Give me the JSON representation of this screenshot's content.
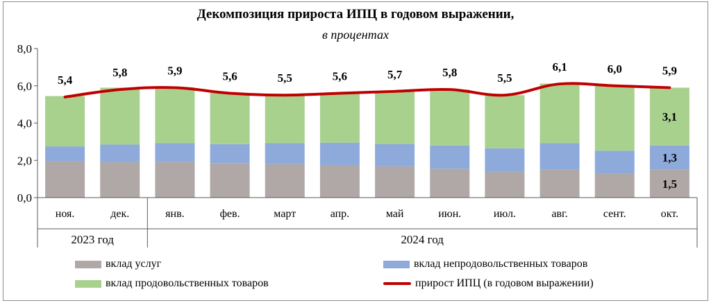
{
  "title": "Декомпозиция  прироста ИПЦ  в годовом выражении,",
  "subtitle": "в процентах",
  "chart_data": {
    "type": "bar",
    "stacked": true,
    "categories": [
      "ноя.",
      "дек.",
      "янв.",
      "фев.",
      "март",
      "апр.",
      "май",
      "июн.",
      "июл.",
      "авг.",
      "сент.",
      "окт."
    ],
    "year_groups": [
      {
        "label": "2023 год",
        "span": 2
      },
      {
        "label": "2024 год",
        "span": 10
      }
    ],
    "ylim": [
      0,
      8
    ],
    "yticks": [
      "0,0",
      "2,0",
      "4,0",
      "6,0",
      "8,0"
    ],
    "ytick_values": [
      0,
      2,
      4,
      6,
      8
    ],
    "series": [
      {
        "name": "вклад услуг",
        "color": "#afa8a6",
        "values": [
          1.95,
          1.9,
          1.92,
          1.85,
          1.8,
          1.75,
          1.68,
          1.55,
          1.38,
          1.5,
          1.3,
          1.5
        ]
      },
      {
        "name": "вклад непродовольственных товаров",
        "color": "#8eaadb",
        "values": [
          0.8,
          0.95,
          1.0,
          1.02,
          1.12,
          1.2,
          1.2,
          1.25,
          1.27,
          1.42,
          1.22,
          1.3
        ]
      },
      {
        "name": "вклад продовольственных товаров",
        "color": "#a9d18e",
        "values": [
          2.7,
          3.05,
          3.0,
          2.75,
          2.6,
          2.65,
          2.8,
          3.0,
          2.85,
          3.2,
          3.5,
          3.1
        ]
      }
    ],
    "line": {
      "name": "прирост ИПЦ (в годовом выражении)",
      "color": "#c00000",
      "values": [
        5.4,
        5.8,
        5.9,
        5.6,
        5.5,
        5.6,
        5.7,
        5.8,
        5.5,
        6.1,
        6.0,
        5.9
      ]
    },
    "line_labels": [
      "5,4",
      "5,8",
      "5,9",
      "5,6",
      "5,5",
      "5,6",
      "5,7",
      "5,8",
      "5,5",
      "6,1",
      "6,0",
      "5,9"
    ],
    "segment_labels": {
      "index": 11,
      "labels": [
        "1,5",
        "1,3",
        "3,1"
      ]
    },
    "grid": false,
    "legend_position": "bottom"
  }
}
